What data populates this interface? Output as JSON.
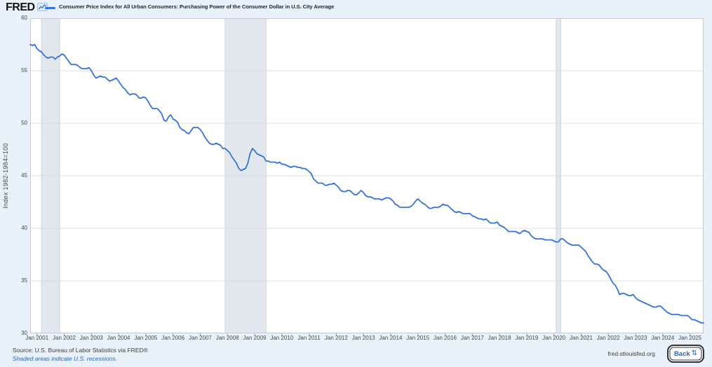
{
  "header": {
    "logo_text": "FRED"
  },
  "chart_data": {
    "type": "line",
    "title": "Consumer Price Index for All Urban Consumers: Purchasing Power of the Consumer Dollar in U.S. City Average",
    "ylabel": "Index 1982-1984=100",
    "ylim": [
      30,
      60
    ],
    "y_ticks": [
      60,
      55,
      50,
      45,
      40,
      35,
      30
    ],
    "y_gridlines": [
      55,
      50,
      45,
      40,
      35
    ],
    "grid": "horizontal",
    "legend_position": "top",
    "frequency": "monthly",
    "x_range": [
      "Oct 2000",
      "Jul 2025"
    ],
    "x_tick_labels": [
      "Jan 2001",
      "Jan 2002",
      "Jan 2003",
      "Jan 2004",
      "Jan 2005",
      "Jan 2006",
      "Jan 2007",
      "Jan 2008",
      "Jan 2009",
      "Jan 2010",
      "Jan 2011",
      "Jan 2012",
      "Jan 2013",
      "Jan 2014",
      "Jan 2015",
      "Jan 2016",
      "Jan 2017",
      "Jan 2018",
      "Jan 2019",
      "Jan 2020",
      "Jan 2021",
      "Jan 2022",
      "Jan 2023",
      "Jan 2024",
      "Jan 2025"
    ],
    "x_tick_first_index": 3,
    "x_tick_step": 12,
    "line_color": "#3273df",
    "band_color": "#e3e8ee",
    "band_edge_color": "#ccd3da",
    "recession_bands": [
      {
        "label": "Mar 2001 - Nov 2001",
        "start_index": 5,
        "end_index": 13
      },
      {
        "label": "Dec 2007 - Jun 2009",
        "start_index": 86,
        "end_index": 104
      },
      {
        "label": "Feb 2020 - Apr 2020",
        "start_index": 232,
        "end_index": 234
      }
    ],
    "series": [
      {
        "name": "Consumer Price Index for All Urban Consumers: Purchasing Power of the Consumer Dollar in U.S. City Average",
        "values": [
          57.5,
          57.4,
          57.5,
          57.1,
          56.9,
          56.8,
          56.5,
          56.3,
          56.2,
          56.3,
          56.3,
          56.1,
          56.3,
          56.4,
          56.6,
          56.5,
          56.2,
          55.9,
          55.6,
          55.6,
          55.6,
          55.5,
          55.3,
          55.2,
          55.2,
          55.2,
          55.3,
          55.0,
          54.6,
          54.3,
          54.4,
          54.5,
          54.4,
          54.4,
          54.2,
          54.0,
          54.1,
          54.2,
          54.3,
          54.0,
          53.7,
          53.4,
          53.2,
          52.9,
          52.7,
          52.8,
          52.8,
          52.7,
          52.4,
          52.4,
          52.5,
          52.4,
          52.1,
          51.7,
          51.4,
          51.4,
          51.4,
          51.2,
          50.9,
          50.3,
          50.2,
          50.6,
          50.8,
          50.4,
          50.3,
          50.1,
          49.6,
          49.4,
          49.3,
          49.1,
          49.0,
          49.3,
          49.6,
          49.6,
          49.6,
          49.4,
          49.1,
          48.7,
          48.4,
          48.1,
          48.0,
          48.0,
          48.1,
          48.0,
          47.9,
          47.6,
          47.6,
          47.4,
          47.2,
          46.8,
          46.5,
          46.2,
          45.7,
          45.5,
          45.6,
          45.7,
          46.2,
          47.1,
          47.6,
          47.4,
          47.1,
          47.0,
          46.9,
          46.8,
          46.4,
          46.4,
          46.3,
          46.3,
          46.3,
          46.2,
          46.3,
          46.1,
          46.1,
          46.0,
          45.9,
          45.8,
          45.9,
          45.9,
          45.8,
          45.8,
          45.7,
          45.7,
          45.6,
          45.4,
          45.2,
          44.7,
          44.5,
          44.3,
          44.3,
          44.3,
          44.1,
          44.1,
          44.2,
          44.2,
          44.3,
          44.1,
          43.9,
          43.6,
          43.5,
          43.5,
          43.6,
          43.6,
          43.4,
          43.2,
          43.2,
          43.4,
          43.6,
          43.4,
          43.1,
          43.0,
          43.0,
          42.9,
          42.8,
          42.8,
          42.8,
          42.7,
          42.8,
          42.9,
          42.9,
          42.8,
          42.6,
          42.3,
          42.2,
          42.0,
          42.0,
          42.0,
          42.0,
          42.0,
          42.1,
          42.3,
          42.6,
          42.8,
          42.6,
          42.4,
          42.3,
          42.1,
          41.9,
          41.9,
          42.0,
          42.0,
          42.0,
          42.1,
          42.3,
          42.2,
          42.2,
          42.0,
          41.8,
          41.6,
          41.5,
          41.6,
          41.5,
          41.4,
          41.4,
          41.4,
          41.4,
          41.2,
          41.1,
          41.0,
          40.9,
          40.9,
          40.8,
          40.9,
          40.7,
          40.5,
          40.5,
          40.5,
          40.6,
          40.3,
          40.2,
          40.1,
          39.9,
          39.7,
          39.7,
          39.7,
          39.7,
          39.6,
          39.5,
          39.7,
          39.8,
          39.7,
          39.6,
          39.3,
          39.1,
          39.0,
          39.0,
          39.0,
          39.0,
          38.9,
          38.9,
          38.9,
          38.9,
          38.8,
          38.7,
          38.7,
          39.0,
          39.0,
          38.8,
          38.6,
          38.5,
          38.4,
          38.4,
          38.4,
          38.4,
          38.2,
          38.0,
          37.8,
          37.4,
          37.1,
          36.8,
          36.6,
          36.6,
          36.5,
          36.2,
          36.0,
          35.9,
          35.6,
          35.2,
          34.8,
          34.6,
          34.2,
          33.7,
          33.8,
          33.8,
          33.7,
          33.6,
          33.6,
          33.7,
          33.4,
          33.2,
          33.1,
          33.0,
          32.9,
          32.8,
          32.7,
          32.6,
          32.5,
          32.5,
          32.6,
          32.6,
          32.4,
          32.2,
          32.0,
          31.9,
          31.8,
          31.8,
          31.8,
          31.8,
          31.7,
          31.7,
          31.7,
          31.7,
          31.5,
          31.3,
          31.3,
          31.2,
          31.1,
          31.0,
          31.0
        ]
      }
    ]
  },
  "footer": {
    "source": "Source: U.S. Bureau of Labor Statistics via FRED®",
    "note": "Shaded areas indicate U.S. recessions.",
    "site": "fred.stlouisfed.org",
    "back_label": "Back",
    "back_icon": "⇅"
  }
}
